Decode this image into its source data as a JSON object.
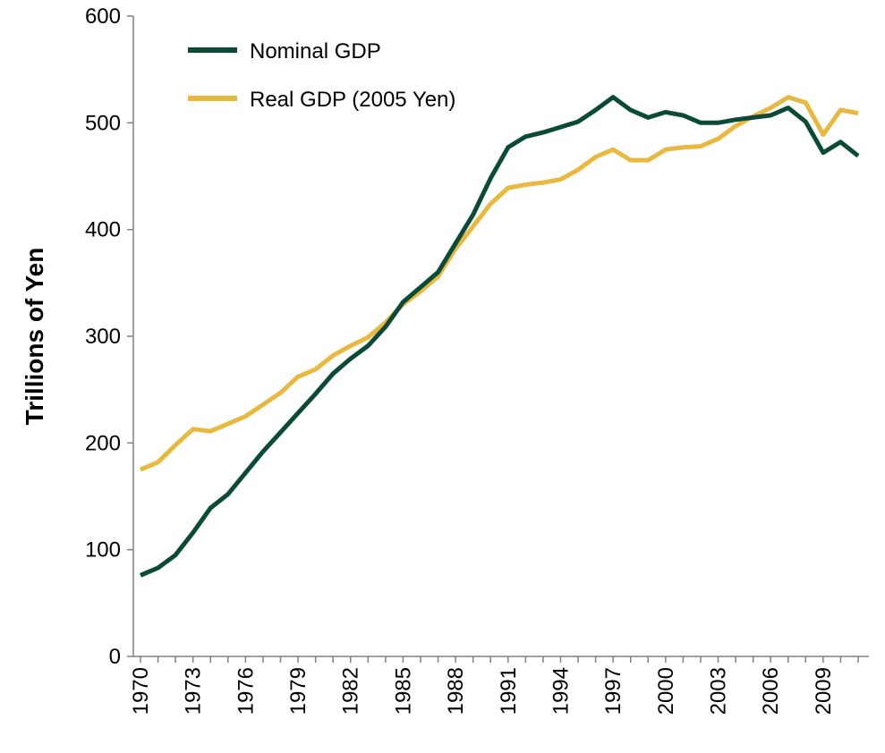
{
  "chart_data": {
    "type": "line",
    "ylabel": "Trillions of Yen",
    "ylim": [
      0,
      600
    ],
    "yticks": [
      0,
      100,
      200,
      300,
      400,
      500,
      600
    ],
    "x_tick_labels": [
      "1970",
      "1973",
      "1976",
      "1979",
      "1982",
      "1985",
      "1988",
      "1991",
      "1994",
      "1997",
      "2000",
      "2003",
      "2006",
      "2009"
    ],
    "x": [
      1970,
      1971,
      1972,
      1973,
      1974,
      1975,
      1976,
      1977,
      1978,
      1979,
      1980,
      1981,
      1982,
      1983,
      1984,
      1985,
      1986,
      1987,
      1988,
      1989,
      1990,
      1991,
      1992,
      1993,
      1994,
      1995,
      1996,
      1997,
      1998,
      1999,
      2000,
      2001,
      2002,
      2003,
      2004,
      2005,
      2006,
      2007,
      2008,
      2009,
      2010,
      2011
    ],
    "xlim": [
      1970,
      2011
    ],
    "grid": false,
    "legend_position": "top-left",
    "series": [
      {
        "name": "Nominal GDP",
        "color": "#0b4a36",
        "values": [
          76,
          83,
          95,
          116,
          139,
          152,
          172,
          192,
          210,
          228,
          246,
          265,
          279,
          291,
          309,
          332,
          346,
          360,
          387,
          414,
          448,
          477,
          487,
          491,
          496,
          501,
          512,
          524,
          512,
          505,
          510,
          507,
          500,
          500,
          503,
          505,
          507,
          514,
          501,
          472,
          482,
          469
        ]
      },
      {
        "name": "Real GDP (2005 Yen)",
        "color": "#e8b93e",
        "values": [
          175,
          182,
          198,
          213,
          211,
          218,
          225,
          236,
          247,
          262,
          269,
          282,
          291,
          299,
          313,
          330,
          342,
          356,
          382,
          403,
          424,
          439,
          442,
          444,
          447,
          456,
          468,
          475,
          465,
          465,
          475,
          477,
          478,
          485,
          497,
          506,
          514,
          524,
          519,
          489,
          512,
          509
        ]
      }
    ]
  }
}
